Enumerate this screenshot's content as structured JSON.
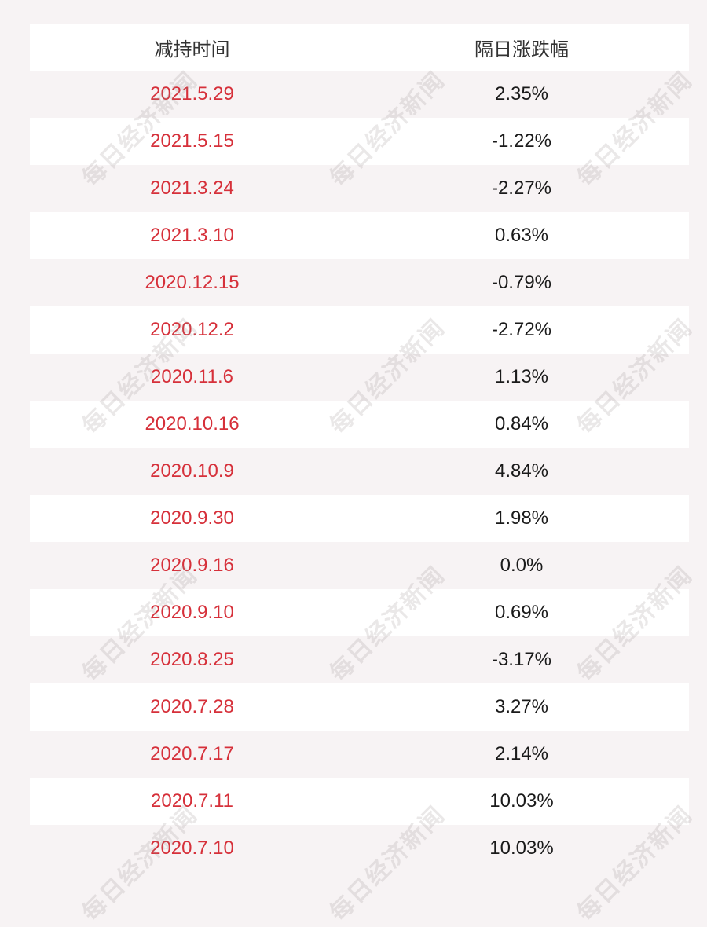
{
  "table": {
    "headers": [
      "减持时间",
      "隔日涨跌幅"
    ],
    "rows": [
      {
        "date": "2021.5.29",
        "change": "2.35%"
      },
      {
        "date": "2021.5.15",
        "change": "-1.22%"
      },
      {
        "date": "2021.3.24",
        "change": "-2.27%"
      },
      {
        "date": "2021.3.10",
        "change": "0.63%"
      },
      {
        "date": "2020.12.15",
        "change": "-0.79%"
      },
      {
        "date": "2020.12.2",
        "change": "-2.72%"
      },
      {
        "date": "2020.11.6",
        "change": "1.13%"
      },
      {
        "date": "2020.10.16",
        "change": "0.84%"
      },
      {
        "date": "2020.10.9",
        "change": "4.84%"
      },
      {
        "date": "2020.9.30",
        "change": "1.98%"
      },
      {
        "date": "2020.9.16",
        "change": "0.0%"
      },
      {
        "date": "2020.9.10",
        "change": "0.69%"
      },
      {
        "date": "2020.8.25",
        "change": "-3.17%"
      },
      {
        "date": "2020.7.28",
        "change": "3.27%"
      },
      {
        "date": "2020.7.17",
        "change": "2.14%"
      },
      {
        "date": "2020.7.11",
        "change": "10.03%"
      },
      {
        "date": "2020.7.10",
        "change": "10.03%"
      }
    ]
  },
  "watermark": {
    "text": "每日经济新闻"
  },
  "colors": {
    "date_text": "#d6303a",
    "value_text": "#1a1a1a",
    "header_text": "#333333",
    "row_white": "#ffffff",
    "row_pink": "#f7f3f4"
  }
}
